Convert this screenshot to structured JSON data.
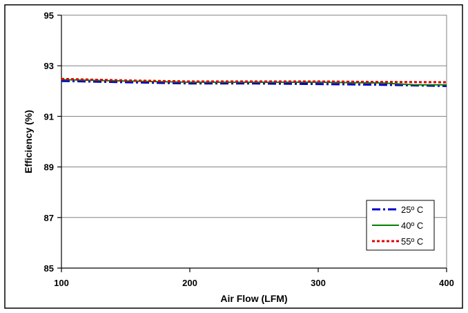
{
  "chart_data": {
    "type": "line",
    "title": "",
    "xlabel": "Air Flow (LFM)",
    "ylabel": "Efficiency (%)",
    "xlim": [
      100,
      400
    ],
    "ylim": [
      85,
      95
    ],
    "xticks": [
      100,
      200,
      300,
      400
    ],
    "yticks": [
      85,
      87,
      89,
      91,
      93,
      95
    ],
    "grid": "horizontal major lines",
    "legend_position": "bottom-right",
    "series": [
      {
        "name": "25º C",
        "color": "#0000cc",
        "dash": "dash-dot",
        "x": [
          100,
          150,
          200,
          250,
          300,
          350,
          400
        ],
        "y": [
          92.4,
          92.35,
          92.3,
          92.3,
          92.28,
          92.25,
          92.2
        ]
      },
      {
        "name": "40º C",
        "color": "#008000",
        "dash": "solid",
        "x": [
          100,
          150,
          200,
          250,
          300,
          350,
          375,
          400
        ],
        "y": [
          92.45,
          92.4,
          92.35,
          92.35,
          92.35,
          92.32,
          92.25,
          92.25
        ]
      },
      {
        "name": "55º C",
        "color": "#dd0000",
        "dash": "dotted",
        "x": [
          100,
          150,
          200,
          250,
          300,
          350,
          400
        ],
        "y": [
          92.48,
          92.42,
          92.38,
          92.38,
          92.38,
          92.36,
          92.35
        ]
      }
    ]
  }
}
